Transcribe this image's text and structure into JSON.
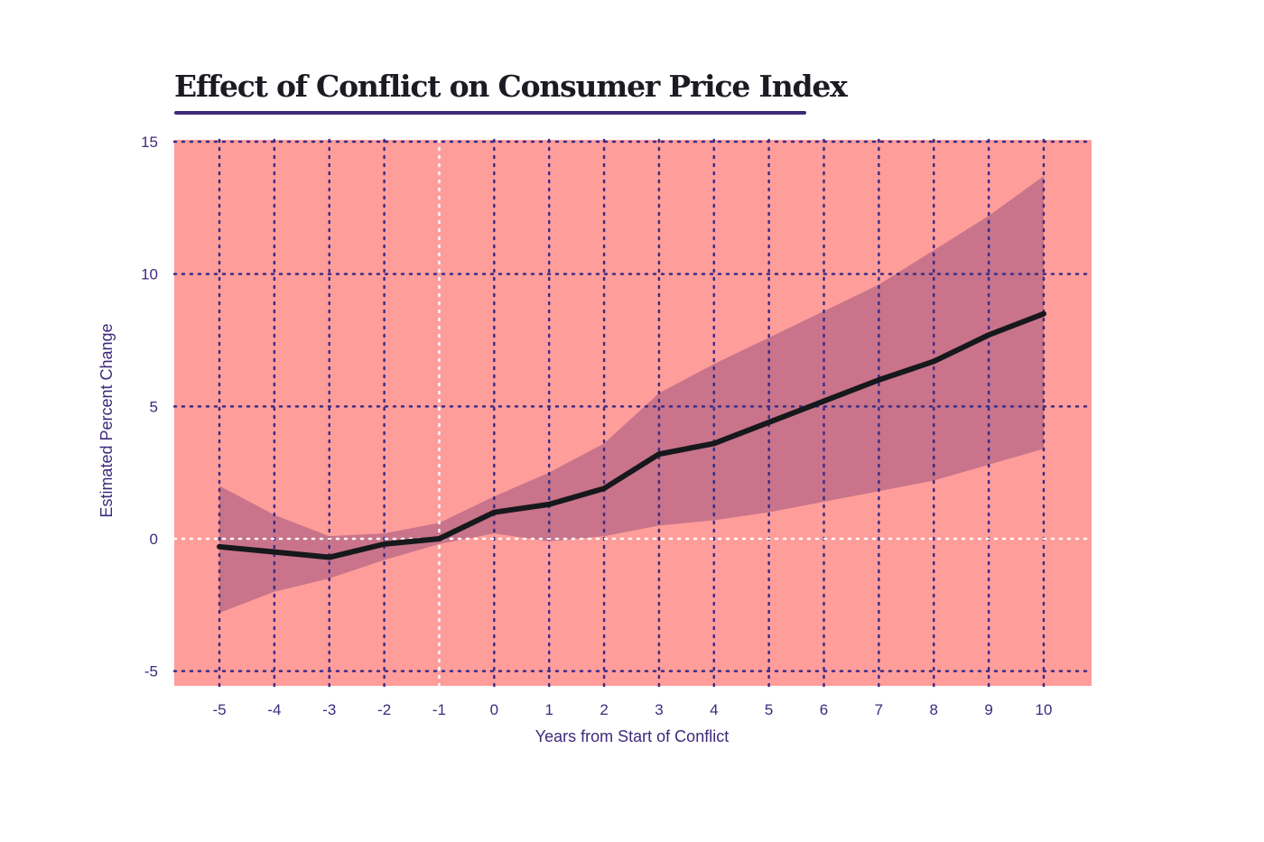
{
  "chart_data": {
    "type": "line",
    "title": "Effect of Conflict on Consumer Price Index",
    "xlabel": "Years from Start of Conflict",
    "ylabel": "Estimated Percent Change",
    "xlim": [
      -5.8,
      10.9
    ],
    "ylim": [
      -5.5,
      15
    ],
    "x_ticks": [
      -5,
      -4,
      -3,
      -2,
      -1,
      0,
      1,
      2,
      3,
      4,
      5,
      6,
      7,
      8,
      9,
      10
    ],
    "y_ticks": [
      -5,
      0,
      5,
      10,
      15
    ],
    "grid": true,
    "legend": "none",
    "x": [
      -5,
      -4,
      -3,
      -2,
      -1,
      0,
      1,
      2,
      3,
      4,
      5,
      6,
      7,
      8,
      9,
      10
    ],
    "series": [
      {
        "values": [
          -0.3,
          -0.5,
          -0.7,
          -0.2,
          0.0,
          1.0,
          1.3,
          1.9,
          3.2,
          3.6,
          4.4,
          5.2,
          6.0,
          6.7,
          7.7,
          8.5
        ],
        "ci_upper": [
          2.0,
          0.9,
          0.1,
          0.2,
          0.6,
          1.6,
          2.5,
          3.6,
          5.5,
          6.6,
          7.6,
          8.6,
          9.6,
          10.9,
          12.2,
          13.7
        ],
        "ci_lower": [
          -2.8,
          -2.0,
          -1.5,
          -0.8,
          -0.2,
          0.2,
          -0.1,
          0.1,
          0.5,
          0.7,
          1.0,
          1.4,
          1.8,
          2.2,
          2.8,
          3.4
        ]
      }
    ],
    "colors": {
      "background": "#fe9d9a",
      "confidence_band": "#c9748a",
      "line": "#16181c",
      "grid": "#3b2c88",
      "zero_line": "#ffffff",
      "text": "#3e2a7c",
      "title": "#1b1b22"
    }
  }
}
